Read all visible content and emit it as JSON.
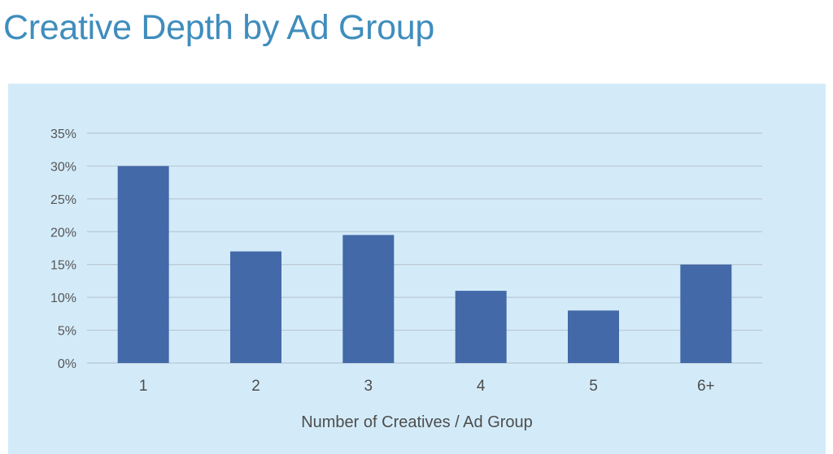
{
  "title": "Creative Depth by Ad Group",
  "chart_data": {
    "type": "bar",
    "title": "Creative Depth by Ad Group",
    "xlabel": "Number of Creatives / Ad Group",
    "ylabel": "",
    "categories": [
      "1",
      "2",
      "3",
      "4",
      "5",
      "6+"
    ],
    "values": [
      30,
      17,
      19.5,
      11,
      8,
      15
    ],
    "ylim": [
      0,
      35
    ],
    "yticks": [
      0,
      5,
      10,
      15,
      20,
      25,
      30,
      35
    ],
    "ytick_labels": [
      "0%",
      "5%",
      "10%",
      "15%",
      "20%",
      "25%",
      "30%",
      "35%"
    ],
    "grid": true,
    "legend": "none",
    "colors": {
      "bar": "#4469a8",
      "title": "#3f8dbd",
      "panel": "#d3ebf9",
      "grid": "#b9c7d2"
    }
  }
}
